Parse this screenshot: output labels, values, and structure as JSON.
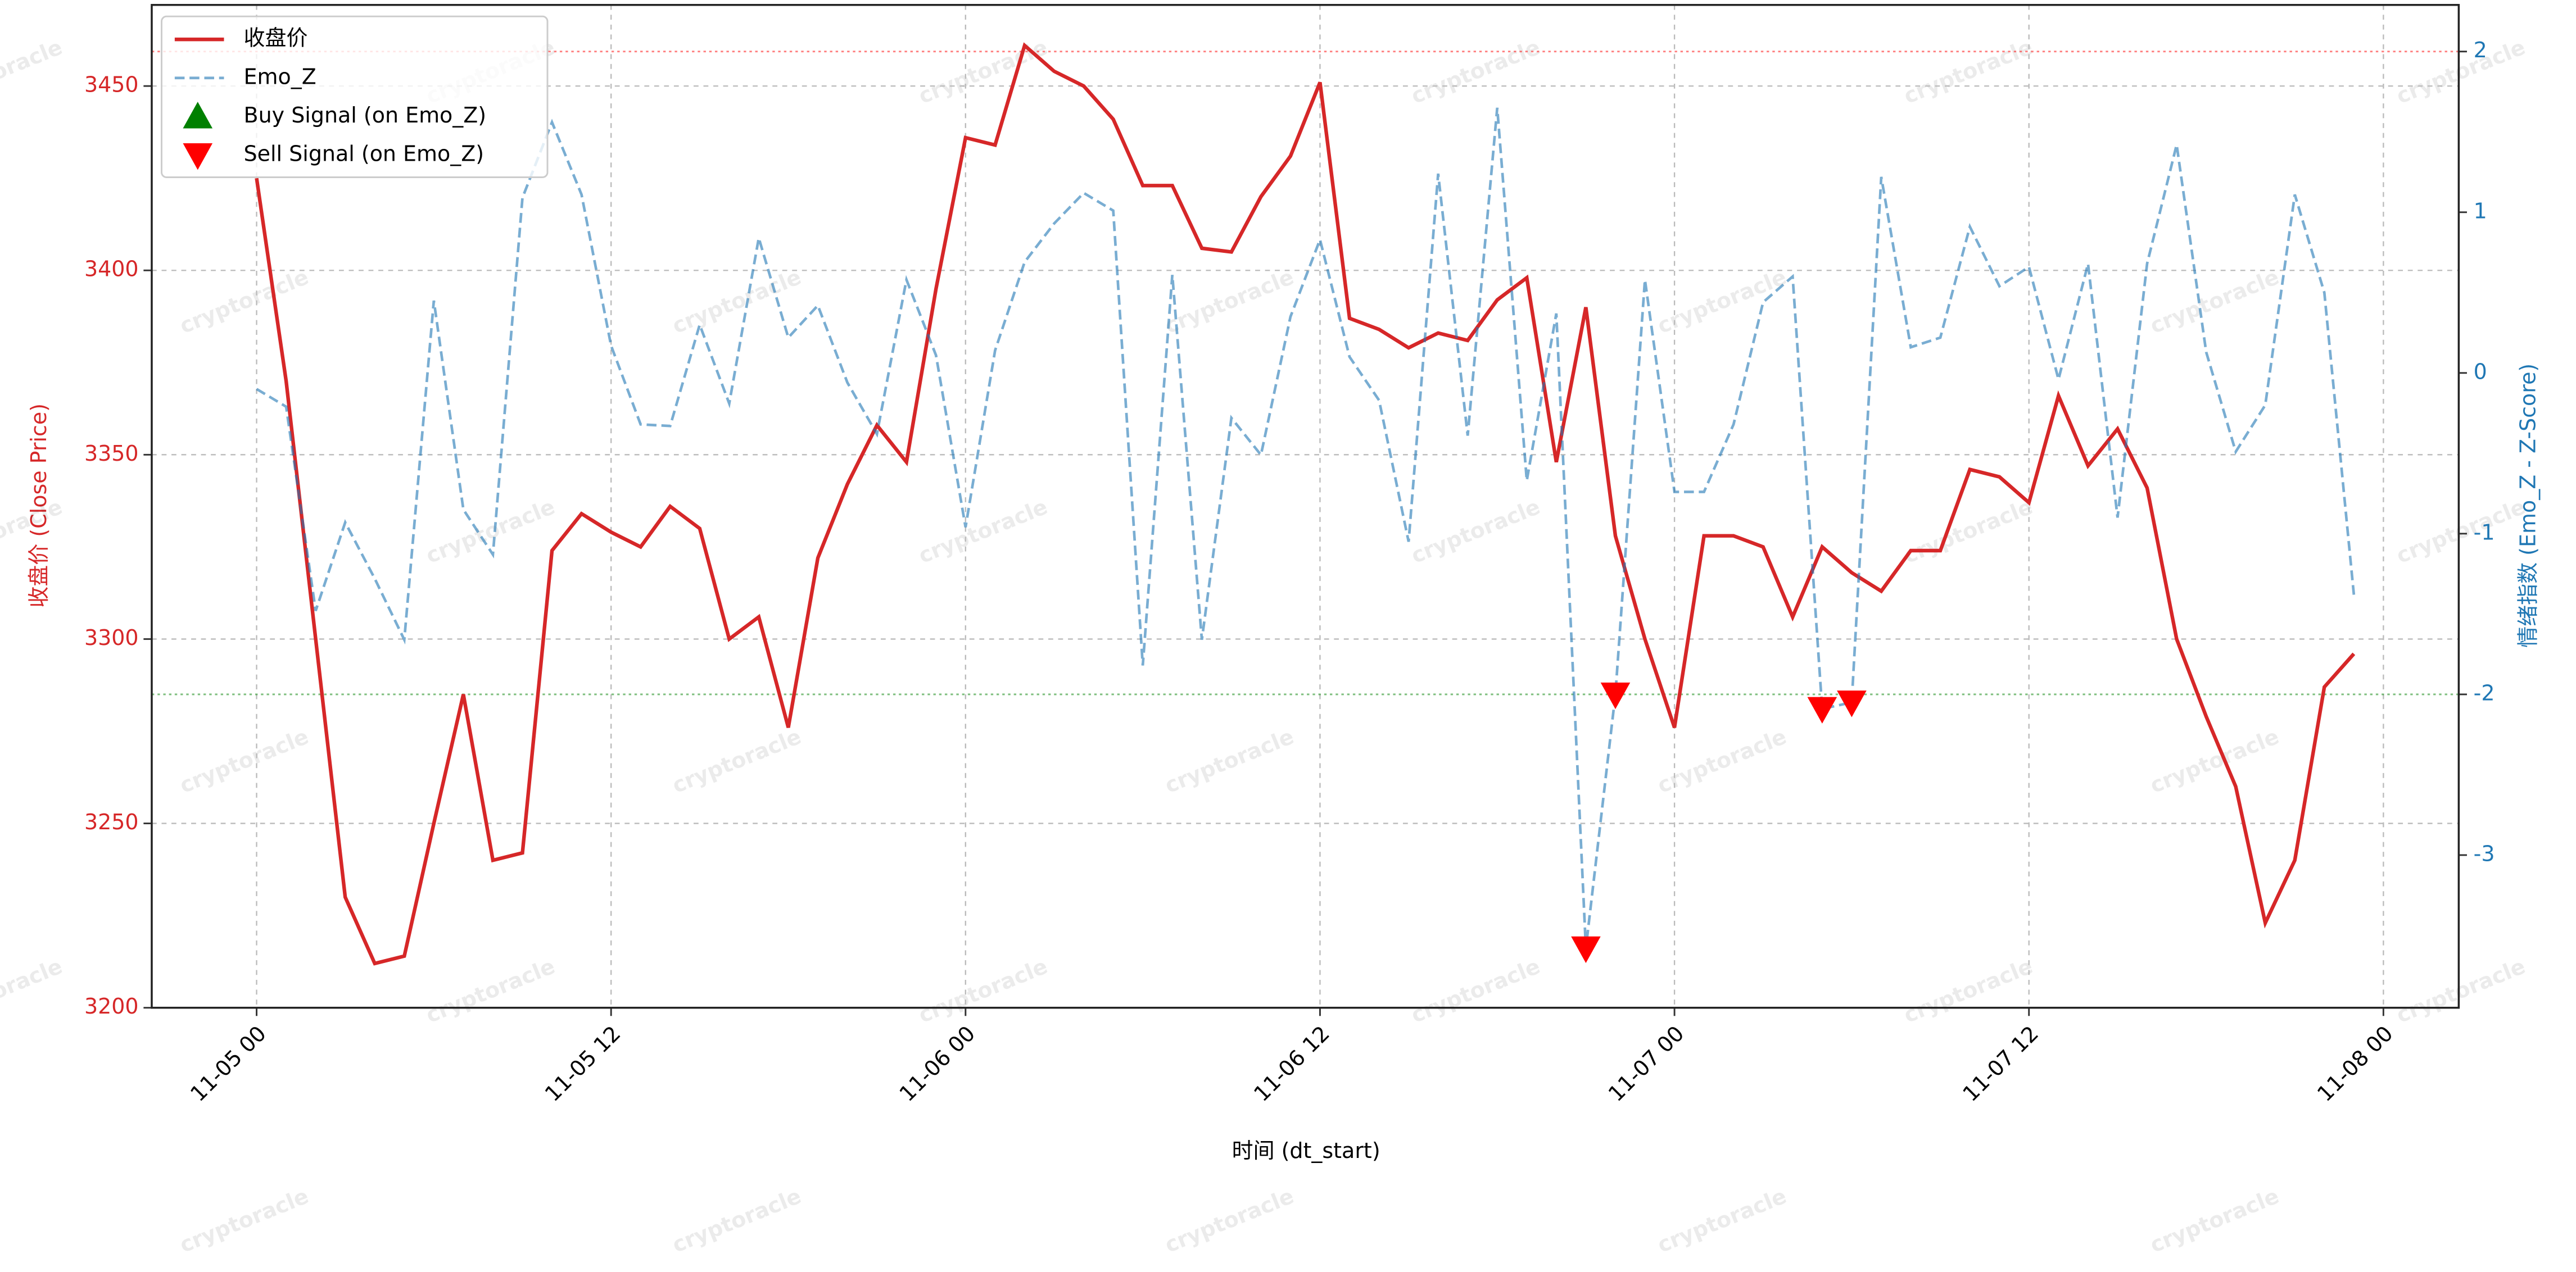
{
  "chart_data": {
    "type": "line",
    "watermark": "cryptoracle",
    "x_label": "时间 (dt_start)",
    "y_label": "收盘价 (Close Price)",
    "y2_label": "情绪指数 (Emo_Z - Z-Score)",
    "x": [
      "11-05 00",
      "11-05 01",
      "11-05 02",
      "11-05 03",
      "11-05 04",
      "11-05 05",
      "11-05 06",
      "11-05 07",
      "11-05 08",
      "11-05 09",
      "11-05 10",
      "11-05 11",
      "11-05 12",
      "11-05 13",
      "11-05 14",
      "11-05 15",
      "11-05 16",
      "11-05 17",
      "11-05 18",
      "11-05 19",
      "11-05 20",
      "11-05 21",
      "11-05 22",
      "11-05 23",
      "11-06 00",
      "11-06 01",
      "11-06 02",
      "11-06 03",
      "11-06 04",
      "11-06 05",
      "11-06 06",
      "11-06 07",
      "11-06 08",
      "11-06 09",
      "11-06 10",
      "11-06 11",
      "11-06 12",
      "11-06 13",
      "11-06 14",
      "11-06 15",
      "11-06 16",
      "11-06 17",
      "11-06 18",
      "11-06 19",
      "11-06 20",
      "11-06 21",
      "11-06 22",
      "11-06 23",
      "11-07 00",
      "11-07 01",
      "11-07 02",
      "11-07 03",
      "11-07 04",
      "11-07 05",
      "11-07 06",
      "11-07 07",
      "11-07 08",
      "11-07 09",
      "11-07 10",
      "11-07 11",
      "11-07 12",
      "11-07 13",
      "11-07 14",
      "11-07 15",
      "11-07 16",
      "11-07 17",
      "11-07 18",
      "11-07 19",
      "11-07 20",
      "11-07 21",
      "11-07 22",
      "11-07 23"
    ],
    "series": [
      {
        "name": "收盘价",
        "color": "#d62728",
        "style": "solid",
        "values": [
          3425,
          3370,
          3300,
          3230,
          3212,
          3214,
          3250,
          3285,
          3240,
          3242,
          3324,
          3334,
          3329,
          3325,
          3336,
          3330,
          3300,
          3306,
          3276,
          3322,
          3342,
          3358,
          3348,
          3395,
          3436,
          3434,
          3461,
          3454,
          3450,
          3441,
          3423,
          3423,
          3406,
          3405,
          3420,
          3431,
          3451,
          3387,
          3384,
          3379,
          3383,
          3381,
          3392,
          3398,
          3348,
          3390,
          3328,
          3300,
          3276,
          3328,
          3328,
          3325,
          3306,
          3325,
          3318,
          3313,
          3324,
          3324,
          3346,
          3344,
          3337,
          3366,
          3347,
          3357,
          3341,
          3300,
          3279,
          3260,
          3223,
          3240,
          3287,
          3296
        ]
      },
      {
        "name": "Emo_Z",
        "color": "#1f77b4",
        "style": "dashed",
        "axis": "y2",
        "values": [
          -0.1,
          -0.21,
          -1.48,
          -0.93,
          -1.28,
          -1.66,
          0.45,
          -0.85,
          -1.13,
          1.09,
          1.56,
          1.11,
          0.17,
          -0.32,
          -0.33,
          0.3,
          -0.19,
          0.84,
          0.22,
          0.42,
          -0.06,
          -0.38,
          0.58,
          0.11,
          -0.96,
          0.14,
          0.69,
          0.93,
          1.12,
          1.01,
          -1.82,
          0.61,
          -1.66,
          -0.28,
          -0.51,
          0.35,
          0.83,
          0.1,
          -0.17,
          -1.05,
          1.24,
          -0.39,
          1.65,
          -0.67,
          0.37,
          -3.58,
          -2.0,
          0.58,
          -0.74,
          -0.74,
          -0.32,
          0.44,
          0.6,
          -2.09,
          -2.05,
          1.22,
          0.16,
          0.22,
          0.91,
          0.54,
          0.66,
          -0.04,
          0.68,
          -0.9,
          0.68,
          1.42,
          0.13,
          -0.49,
          -0.2,
          1.11,
          0.5,
          -1.38
        ]
      },
      {
        "name": "Buy Signal (on Emo_Z)",
        "color": "green",
        "marker": "up",
        "axis": "y2",
        "x": [],
        "values": []
      },
      {
        "name": "Sell Signal (on Emo_Z)",
        "color": "red",
        "marker": "down",
        "axis": "y2",
        "x": [
          "11-06 21",
          "11-06 22",
          "11-07 05",
          "11-07 06"
        ],
        "values": [
          -3.58,
          -2.0,
          -2.09,
          -2.05
        ]
      }
    ],
    "hlines": [
      {
        "value": 2,
        "color": "red",
        "axis": "y2"
      },
      {
        "value": -2,
        "color": "green",
        "axis": "y2"
      }
    ],
    "ylim": [
      3200,
      3472
    ],
    "yticks": [
      3200,
      3250,
      3300,
      3350,
      3400,
      3450
    ],
    "y2lim": [
      -3.95,
      2.29
    ],
    "y2ticks": [
      -3,
      -2,
      -1,
      0,
      1,
      2
    ],
    "xticks": [
      "11-05 00",
      "11-05 12",
      "11-06 00",
      "11-06 12",
      "11-07 00",
      "11-07 12",
      "11-08 00"
    ],
    "grid": true,
    "legend": "upper left"
  }
}
